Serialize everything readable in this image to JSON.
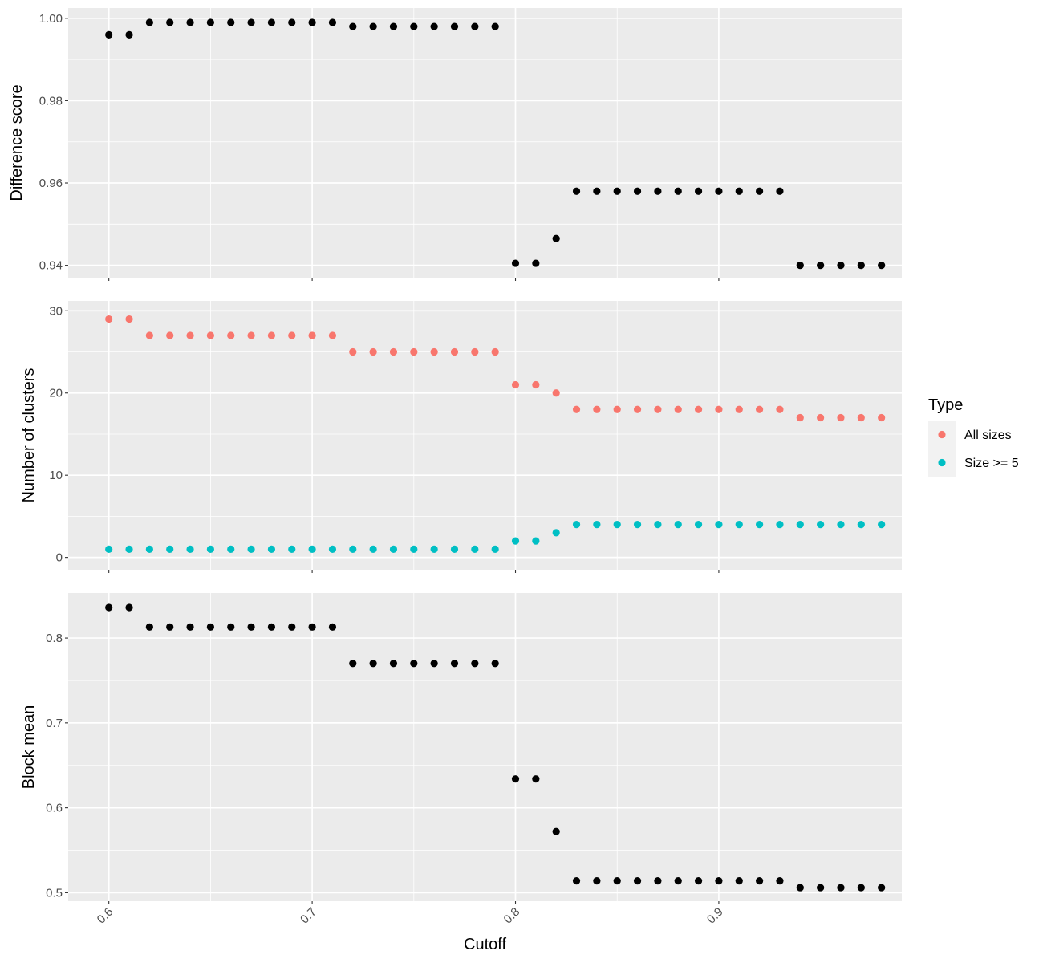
{
  "chart_data": {
    "type": "scatter",
    "layout": "stacked-facets-shared-x",
    "xlabel": "Cutoff",
    "x_ticks": [
      0.6,
      0.7,
      0.8,
      0.9
    ],
    "x_tick_labels": [
      "0.6",
      "0.7",
      "0.8",
      "0.9"
    ],
    "xlim": [
      0.58,
      0.99
    ],
    "background": "#ebebeb",
    "grid": true,
    "panels": [
      {
        "ylabel": "Difference score",
        "ylim": [
          0.937,
          1.0025
        ],
        "y_ticks": [
          0.94,
          0.96,
          0.98,
          1.0
        ],
        "y_tick_labels": [
          "0.94",
          "0.96",
          "0.98",
          "1.00"
        ],
        "series": [
          {
            "color": "#000000",
            "x": [
              0.6,
              0.61,
              0.62,
              0.63,
              0.64,
              0.65,
              0.66,
              0.67,
              0.68,
              0.69,
              0.7,
              0.71,
              0.72,
              0.73,
              0.74,
              0.75,
              0.76,
              0.77,
              0.78,
              0.79,
              0.8,
              0.81,
              0.82,
              0.83,
              0.84,
              0.85,
              0.86,
              0.87,
              0.88,
              0.89,
              0.9,
              0.91,
              0.92,
              0.93,
              0.94,
              0.95,
              0.96,
              0.97,
              0.98
            ],
            "y": [
              0.996,
              0.996,
              0.999,
              0.999,
              0.999,
              0.999,
              0.999,
              0.999,
              0.999,
              0.999,
              0.999,
              0.999,
              0.998,
              0.998,
              0.998,
              0.998,
              0.998,
              0.998,
              0.998,
              0.998,
              0.9405,
              0.9405,
              0.9465,
              0.958,
              0.958,
              0.958,
              0.958,
              0.958,
              0.958,
              0.958,
              0.958,
              0.958,
              0.958,
              0.958,
              0.94,
              0.94,
              0.94,
              0.94,
              0.94
            ]
          }
        ]
      },
      {
        "ylabel": "Number of clusters",
        "ylim": [
          -1.5,
          31.2
        ],
        "y_ticks": [
          0,
          10,
          20,
          30
        ],
        "y_tick_labels": [
          "0",
          "10",
          "20",
          "30"
        ],
        "series": [
          {
            "name": "All sizes",
            "color": "#f8766d",
            "x": [
              0.6,
              0.61,
              0.62,
              0.63,
              0.64,
              0.65,
              0.66,
              0.67,
              0.68,
              0.69,
              0.7,
              0.71,
              0.72,
              0.73,
              0.74,
              0.75,
              0.76,
              0.77,
              0.78,
              0.79,
              0.8,
              0.81,
              0.82,
              0.83,
              0.84,
              0.85,
              0.86,
              0.87,
              0.88,
              0.89,
              0.9,
              0.91,
              0.92,
              0.93,
              0.94,
              0.95,
              0.96,
              0.97,
              0.98
            ],
            "y": [
              29,
              29,
              27,
              27,
              27,
              27,
              27,
              27,
              27,
              27,
              27,
              27,
              25,
              25,
              25,
              25,
              25,
              25,
              25,
              25,
              21,
              21,
              20,
              18,
              18,
              18,
              18,
              18,
              18,
              18,
              18,
              18,
              18,
              18,
              17,
              17,
              17,
              17,
              17
            ]
          },
          {
            "name": "Size >= 5",
            "color": "#00bfc4",
            "x": [
              0.6,
              0.61,
              0.62,
              0.63,
              0.64,
              0.65,
              0.66,
              0.67,
              0.68,
              0.69,
              0.7,
              0.71,
              0.72,
              0.73,
              0.74,
              0.75,
              0.76,
              0.77,
              0.78,
              0.79,
              0.8,
              0.81,
              0.82,
              0.83,
              0.84,
              0.85,
              0.86,
              0.87,
              0.88,
              0.89,
              0.9,
              0.91,
              0.92,
              0.93,
              0.94,
              0.95,
              0.96,
              0.97,
              0.98
            ],
            "y": [
              1,
              1,
              1,
              1,
              1,
              1,
              1,
              1,
              1,
              1,
              1,
              1,
              1,
              1,
              1,
              1,
              1,
              1,
              1,
              1,
              2,
              2,
              3,
              4,
              4,
              4,
              4,
              4,
              4,
              4,
              4,
              4,
              4,
              4,
              4,
              4,
              4,
              4,
              4
            ]
          }
        ]
      },
      {
        "ylabel": "Block mean",
        "ylim": [
          0.49,
          0.853
        ],
        "y_ticks": [
          0.5,
          0.6,
          0.7,
          0.8
        ],
        "y_tick_labels": [
          "0.5",
          "0.6",
          "0.7",
          "0.8"
        ],
        "series": [
          {
            "color": "#000000",
            "x": [
              0.6,
              0.61,
              0.62,
              0.63,
              0.64,
              0.65,
              0.66,
              0.67,
              0.68,
              0.69,
              0.7,
              0.71,
              0.72,
              0.73,
              0.74,
              0.75,
              0.76,
              0.77,
              0.78,
              0.79,
              0.8,
              0.81,
              0.82,
              0.83,
              0.84,
              0.85,
              0.86,
              0.87,
              0.88,
              0.89,
              0.9,
              0.91,
              0.92,
              0.93,
              0.94,
              0.95,
              0.96,
              0.97,
              0.98
            ],
            "y": [
              0.836,
              0.836,
              0.813,
              0.813,
              0.813,
              0.813,
              0.813,
              0.813,
              0.813,
              0.813,
              0.813,
              0.813,
              0.77,
              0.77,
              0.77,
              0.77,
              0.77,
              0.77,
              0.77,
              0.77,
              0.634,
              0.634,
              0.572,
              0.514,
              0.514,
              0.514,
              0.514,
              0.514,
              0.514,
              0.514,
              0.514,
              0.514,
              0.514,
              0.514,
              0.506,
              0.506,
              0.506,
              0.506,
              0.506
            ]
          }
        ]
      }
    ],
    "legend": {
      "title": "Type",
      "position": "right",
      "items": [
        {
          "label": "All sizes",
          "color": "#f8766d"
        },
        {
          "label": "Size >= 5",
          "color": "#00bfc4"
        }
      ]
    }
  }
}
